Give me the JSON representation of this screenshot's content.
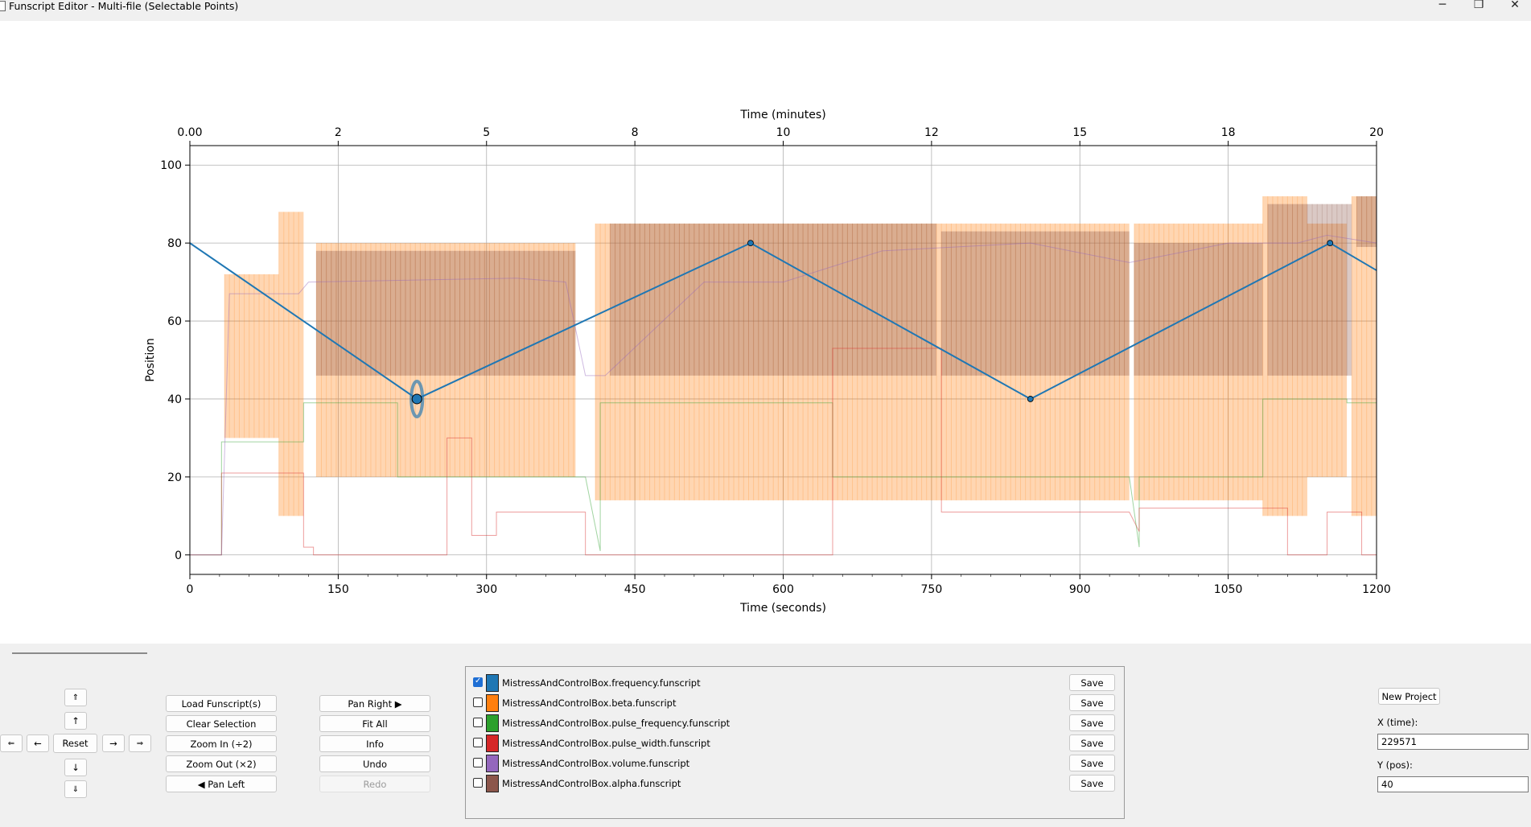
{
  "window": {
    "title": "Funscript Editor - Multi-file (Selectable Points)",
    "minimize_glyph": "─",
    "restore_glyph": "❐",
    "close_glyph": "✕"
  },
  "chart_data": {
    "type": "line",
    "title": "",
    "xlabel": "Time (seconds)",
    "ylabel": "Position",
    "top_xlabel": "Time (minutes)",
    "xlim": [
      0,
      1200
    ],
    "ylim": [
      -5,
      105
    ],
    "x_ticks": [
      0,
      150,
      300,
      450,
      600,
      750,
      900,
      1050,
      1200
    ],
    "x_tick_labels": [
      "0",
      "150",
      "300",
      "450",
      "600",
      "750",
      "900",
      "1050",
      "1200"
    ],
    "y_ticks": [
      0,
      20,
      40,
      60,
      80,
      100
    ],
    "y_tick_labels": [
      "0",
      "20",
      "40",
      "60",
      "80",
      "100"
    ],
    "top_ticks": [
      0,
      150,
      300,
      450,
      600,
      750,
      900,
      1050,
      1200
    ],
    "top_tick_labels": [
      "0.00",
      "2",
      "5",
      "8",
      "10",
      "12",
      "15",
      "18",
      "20"
    ],
    "grid": true,
    "selected_point": {
      "x": 229.6,
      "y": 40
    },
    "series": [
      {
        "name": "MistressAndControlBox.frequency.funscript",
        "color": "#1f77b4",
        "active": true,
        "x": [
          0,
          229.6,
          567,
          850,
          1153,
          1200
        ],
        "y": [
          80,
          40,
          80,
          40,
          80,
          73
        ]
      },
      {
        "name": "MistressAndControlBox.beta.funscript",
        "color": "#ff7f0e",
        "active": false,
        "bands": [
          [
            35,
            90,
            30,
            72
          ],
          [
            90,
            115,
            10,
            88
          ],
          [
            128,
            390,
            20,
            80
          ],
          [
            410,
            700,
            14,
            85
          ],
          [
            700,
            950,
            14,
            85
          ],
          [
            955,
            1085,
            14,
            85
          ],
          [
            1085,
            1130,
            10,
            92
          ],
          [
            1130,
            1170,
            20,
            85
          ],
          [
            1175,
            1200,
            10,
            92
          ]
        ]
      },
      {
        "name": "MistressAndControlBox.pulse_frequency.funscript",
        "color": "#2ca02c",
        "active": false,
        "x": [
          0,
          32,
          32,
          115,
          115,
          210,
          210,
          400,
          415,
          415,
          650,
          650,
          950,
          960,
          960,
          1085,
          1085,
          1170,
          1170,
          1200
        ],
        "y": [
          0,
          0,
          29,
          29,
          39,
          39,
          20,
          20,
          1,
          39,
          39,
          20,
          20,
          2,
          20,
          20,
          40,
          40,
          39,
          39
        ]
      },
      {
        "name": "MistressAndControlBox.pulse_width.funscript",
        "color": "#d62728",
        "active": false,
        "x": [
          0,
          32,
          32,
          115,
          115,
          125,
          125,
          260,
          260,
          285,
          285,
          310,
          310,
          400,
          400,
          650,
          650,
          760,
          760,
          950,
          960,
          960,
          1110,
          1110,
          1150,
          1150,
          1185,
          1185,
          1200
        ],
        "y": [
          0,
          0,
          21,
          21,
          2,
          2,
          0,
          0,
          30,
          30,
          5,
          5,
          11,
          11,
          0,
          0,
          53,
          53,
          11,
          11,
          6,
          12,
          12,
          0,
          0,
          11,
          11,
          0,
          0
        ]
      },
      {
        "name": "MistressAndControlBox.volume.funscript",
        "color": "#9467bd",
        "active": false,
        "x": [
          0,
          32,
          40,
          110,
          120,
          330,
          380,
          400,
          420,
          520,
          600,
          700,
          850,
          950,
          1050,
          1120,
          1150,
          1200
        ],
        "y": [
          0,
          0,
          67,
          67,
          70,
          71,
          70,
          46,
          46,
          70,
          70,
          78,
          80,
          75,
          80,
          80,
          82,
          80
        ]
      },
      {
        "name": "MistressAndControlBox.alpha.funscript",
        "color": "#8c564b",
        "active": false,
        "bands": [
          [
            128,
            390,
            46,
            78
          ],
          [
            425,
            755,
            46,
            85
          ],
          [
            760,
            950,
            46,
            83
          ],
          [
            955,
            1085,
            46,
            80
          ],
          [
            1090,
            1175,
            46,
            90
          ],
          [
            1180,
            1200,
            79,
            92
          ]
        ]
      }
    ]
  },
  "nav": {
    "up_fast": "⇑",
    "up": "↑",
    "left_fast": "⇐",
    "left": "←",
    "reset": "Reset",
    "right": "→",
    "right_fast": "⇒",
    "down": "↓",
    "down_fast": "⇓"
  },
  "buttons": {
    "load": "Load Funscript(s)",
    "clear": "Clear Selection",
    "zoom_in": "Zoom In (÷2)",
    "zoom_out": "Zoom Out (×2)",
    "pan_left": "◀ Pan Left",
    "pan_right": "Pan Right ▶",
    "fit_all": "Fit All",
    "info": "Info",
    "undo": "Undo",
    "redo": "Redo"
  },
  "files": [
    {
      "name": "MistressAndControlBox.frequency.funscript",
      "checked": true,
      "color": "#1f77b4",
      "save": "Save"
    },
    {
      "name": "MistressAndControlBox.beta.funscript",
      "checked": false,
      "color": "#ff7f0e",
      "save": "Save"
    },
    {
      "name": "MistressAndControlBox.pulse_frequency.funscript",
      "checked": false,
      "color": "#2ca02c",
      "save": "Save"
    },
    {
      "name": "MistressAndControlBox.pulse_width.funscript",
      "checked": false,
      "color": "#d62728",
      "save": "Save"
    },
    {
      "name": "MistressAndControlBox.volume.funscript",
      "checked": false,
      "color": "#9467bd",
      "save": "Save"
    },
    {
      "name": "MistressAndControlBox.alpha.funscript",
      "checked": false,
      "color": "#8c564b",
      "save": "Save"
    }
  ],
  "project": {
    "new_project": "New Project",
    "x_label": "X (time):",
    "x_value": "229571",
    "y_label": "Y (pos):",
    "y_value": "40"
  }
}
